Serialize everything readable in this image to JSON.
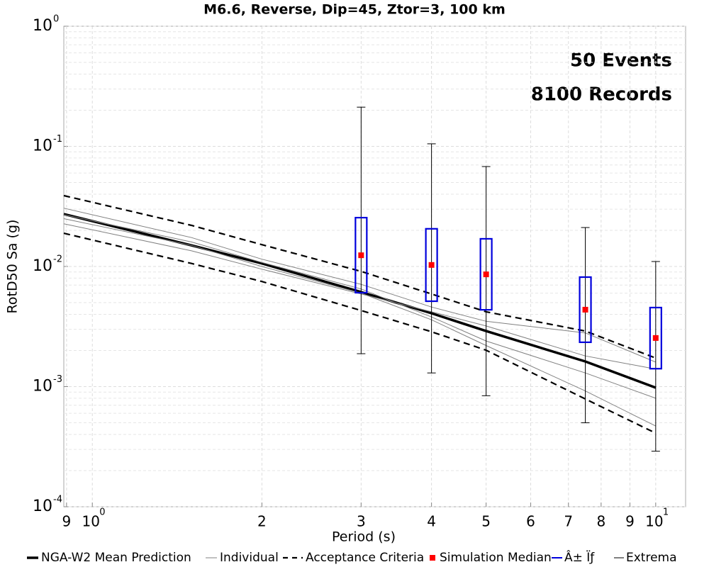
{
  "chart_data": {
    "type": "line",
    "title": "M6.6, Reverse, Dip=45, Ztor=3, 100 km",
    "x_label": "Period (s)",
    "y_label": "RotD50 Sa (g)",
    "annotations": [
      "50 Events",
      "8100 Records"
    ],
    "log_x": true,
    "log_y": true,
    "grid": true,
    "minor_grid": true,
    "xlim": [
      0.89,
      11.3
    ],
    "ylim": [
      0.0001,
      1
    ],
    "xticks": [
      {
        "value": 0.9,
        "label": "9"
      },
      {
        "value": 1,
        "label": "10",
        "exponent": "0"
      },
      2,
      3,
      4,
      5,
      6,
      7,
      8,
      9,
      {
        "value": 10,
        "label": "10",
        "exponent": "1"
      }
    ],
    "yticks": [
      {
        "value": 0.0001,
        "label": "10",
        "exponent": "-4"
      },
      {
        "value": 0.001,
        "label": "10",
        "exponent": "-3"
      },
      {
        "value": 0.01,
        "label": "10",
        "exponent": "-2"
      },
      {
        "value": 0.1,
        "label": "10",
        "exponent": "-1"
      },
      {
        "value": 1,
        "label": "10",
        "exponent": "0"
      }
    ],
    "x": [
      0.89,
      1.5,
      2,
      3,
      4,
      5,
      7.5,
      10
    ],
    "series": [
      {
        "name": "NGA-W2 Mean Prediction",
        "color": "#000000",
        "style": "thick",
        "lines": [
          [
            0.0273,
            0.015,
            0.0106,
            0.00613,
            0.00408,
            0.0029,
            0.00162,
            0.00098
          ]
        ]
      },
      {
        "name": "Individual",
        "color": "#808080",
        "style": "thin",
        "lines": [
          [
            0.0306,
            0.0174,
            0.0115,
            0.0071,
            0.0046,
            0.0035,
            0.0028,
            0.0016
          ],
          [
            0.0227,
            0.0135,
            0.0095,
            0.0059,
            0.0042,
            0.0032,
            0.0018,
            0.0014
          ],
          [
            0.027,
            0.016,
            0.0108,
            0.0065,
            0.0038,
            0.0024,
            0.0013,
            0.0008
          ],
          [
            0.025,
            0.015,
            0.01,
            0.006,
            0.0036,
            0.0022,
            0.00092,
            0.00047
          ]
        ]
      },
      {
        "name": "Acceptance Criteria",
        "color": "#000000",
        "style": "dashed",
        "lines": [
          [
            0.0389,
            0.022,
            0.0152,
            0.0091,
            0.0059,
            0.0042,
            0.0029,
            0.00173
          ],
          [
            0.0189,
            0.0106,
            0.0075,
            0.0043,
            0.00286,
            0.00201,
            0.00079,
            0.00041
          ]
        ]
      }
    ],
    "simulation": {
      "x": [
        3,
        4,
        5,
        7.5,
        10
      ],
      "median": {
        "name": "Simulation Median",
        "color": "#ff0000",
        "values": [
          0.0124,
          0.0103,
          0.0086,
          0.00437,
          0.00254
        ]
      },
      "sigma": {
        "name": "Â± Ïƒ",
        "color": "#0000dd",
        "low": [
          0.00605,
          0.00514,
          0.00436,
          0.00234,
          0.00141
        ],
        "high": [
          0.0255,
          0.0206,
          0.017,
          0.00816,
          0.00455
        ]
      },
      "extrema": {
        "name": "Extrema",
        "color": "#000000",
        "low": [
          0.00188,
          0.0013,
          0.00084,
          0.0005,
          0.00029
        ],
        "high": [
          0.212,
          0.105,
          0.0679,
          0.0211,
          0.011
        ]
      }
    }
  }
}
